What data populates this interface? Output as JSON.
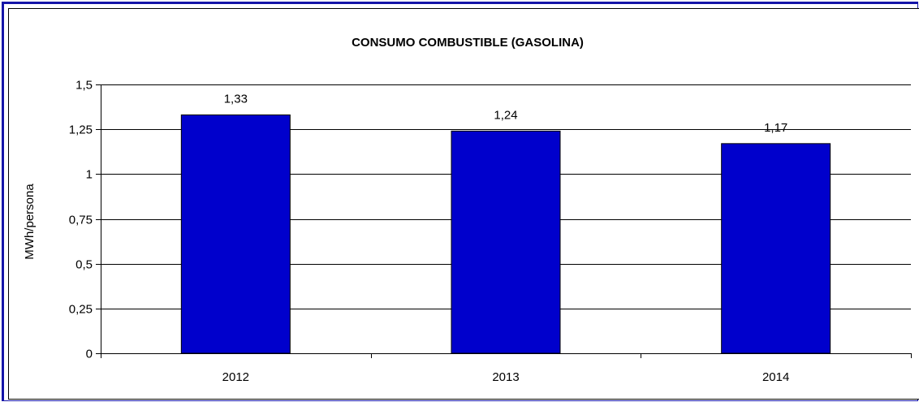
{
  "chart_data": {
    "type": "bar",
    "title": "CONSUMO COMBUSTIBLE (GASOLINA)",
    "xlabel": "",
    "ylabel": "MWh/persona",
    "categories": [
      "2012",
      "2013",
      "2014"
    ],
    "values": [
      1.33,
      1.24,
      1.17
    ],
    "value_labels": [
      "1,33",
      "1,24",
      "1,17"
    ],
    "ylim": [
      0,
      1.5
    ],
    "y_ticks": [
      0,
      0.25,
      0.5,
      0.75,
      1,
      1.25,
      1.5
    ],
    "y_tick_labels": [
      "0",
      "0,25",
      "0,5",
      "0,75",
      "1",
      "1,25",
      "1,5"
    ],
    "grid": true,
    "legend": "none",
    "bar_color": "#0000cc"
  }
}
